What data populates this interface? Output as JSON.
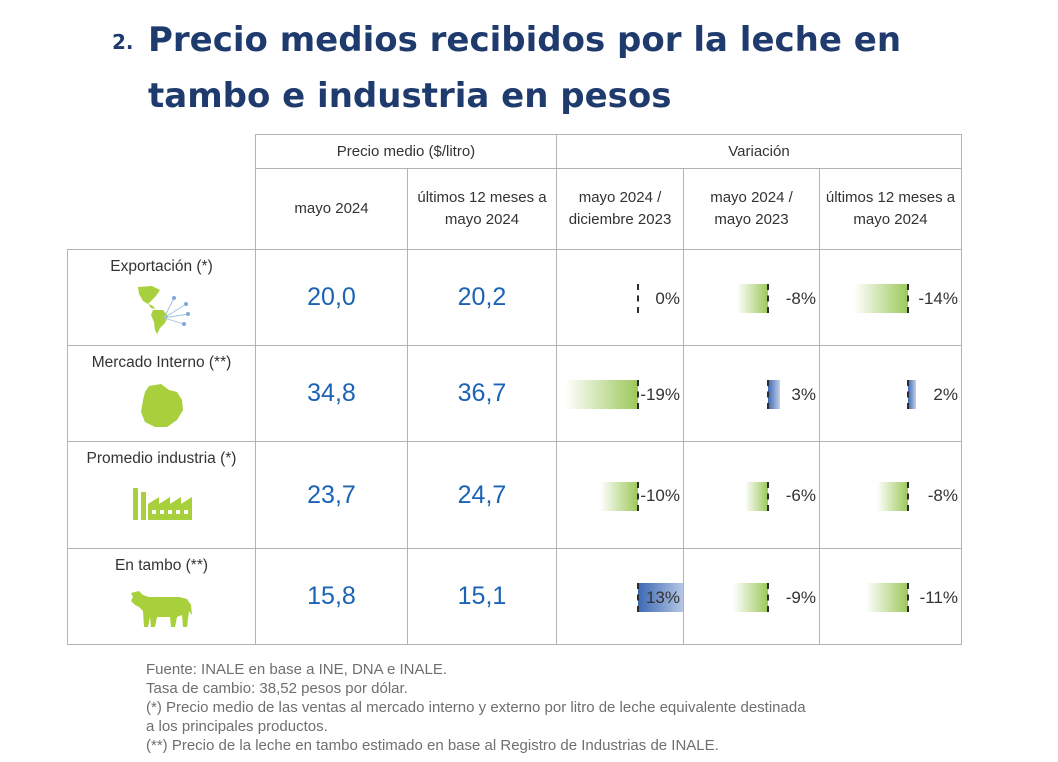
{
  "slide": {
    "number": "2.",
    "title": "Precio medios recibidos por la leche en tambo e industria en pesos"
  },
  "table": {
    "group_headers": {
      "price": "Precio medio ($/litro)",
      "variation": "Variación"
    },
    "column_headers": [
      "mayo 2024",
      "últimos 12 meses a mayo 2024",
      "mayo 2024 / diciembre 2023",
      "mayo 2024 / mayo 2023",
      "últimos 12 meses a mayo 2024"
    ],
    "rows": [
      {
        "label": "Exportación (*)",
        "icon": "americas-map-icon",
        "price_may": "20,0",
        "price_12m": "20,2",
        "variations": [
          {
            "text": "0%",
            "value": 0
          },
          {
            "text": "-8%",
            "value": -8
          },
          {
            "text": "-14%",
            "value": -14
          }
        ]
      },
      {
        "label": "Mercado Interno (**)",
        "icon": "uruguay-map-icon",
        "price_may": "34,8",
        "price_12m": "36,7",
        "variations": [
          {
            "text": "-19%",
            "value": -19
          },
          {
            "text": "3%",
            "value": 3
          },
          {
            "text": "2%",
            "value": 2
          }
        ]
      },
      {
        "label": "Promedio industria (*)",
        "icon": "factory-icon",
        "price_may": "23,7",
        "price_12m": "24,7",
        "variations": [
          {
            "text": "-10%",
            "value": -10
          },
          {
            "text": "-6%",
            "value": -6
          },
          {
            "text": "-8%",
            "value": -8
          }
        ]
      },
      {
        "label": "En tambo (**)",
        "icon": "cow-icon",
        "price_may": "15,8",
        "price_12m": "15,1",
        "variations": [
          {
            "text": "13%",
            "value": 13
          },
          {
            "text": "-9%",
            "value": -9
          },
          {
            "text": "-11%",
            "value": -11
          }
        ]
      }
    ]
  },
  "notes": [
    "Fuente: INALE en base a INE, DNA e INALE.",
    "Tasa de cambio: 38,52 pesos por dólar.",
    "(*) Precio medio de las ventas al mercado interno y externo por litro de leche equivalente destinada",
    "a los principales productos.",
    "(**) Precio de la leche en tambo estimado en base al Registro de Industrias de INALE."
  ],
  "colors": {
    "title": "#1f3b6e",
    "price_value": "#1a63b5",
    "icon_green": "#a8cf3c",
    "negative_bar": "#9cc85a",
    "positive_bar": "#3c68b4"
  }
}
